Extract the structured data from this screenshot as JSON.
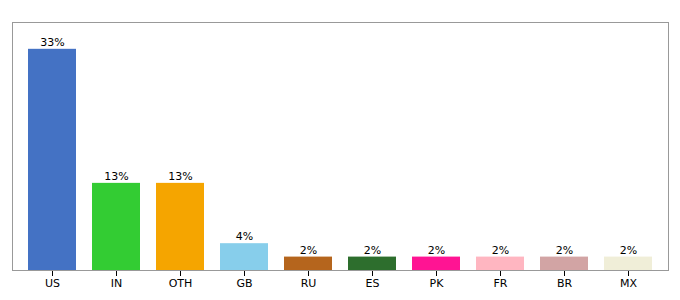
{
  "chart_data": {
    "type": "bar",
    "categories": [
      "US",
      "IN",
      "OTH",
      "GB",
      "RU",
      "ES",
      "PK",
      "FR",
      "BR",
      "MX"
    ],
    "values": [
      33,
      13,
      13,
      4,
      2,
      2,
      2,
      2,
      2,
      2
    ],
    "value_labels": [
      "33%",
      "13%",
      "13%",
      "4%",
      "2%",
      "2%",
      "2%",
      "2%",
      "2%",
      "2%"
    ],
    "colors": [
      "#4472c4",
      "#33cc33",
      "#f5a500",
      "#87ceeb",
      "#b5651d",
      "#2d6e2d",
      "#ff1493",
      "#ffb6c1",
      "#d2a4a4",
      "#f0eed8"
    ],
    "ylim": [
      0,
      37
    ],
    "data_labels": true,
    "tick_labels": "x",
    "grid": false
  }
}
